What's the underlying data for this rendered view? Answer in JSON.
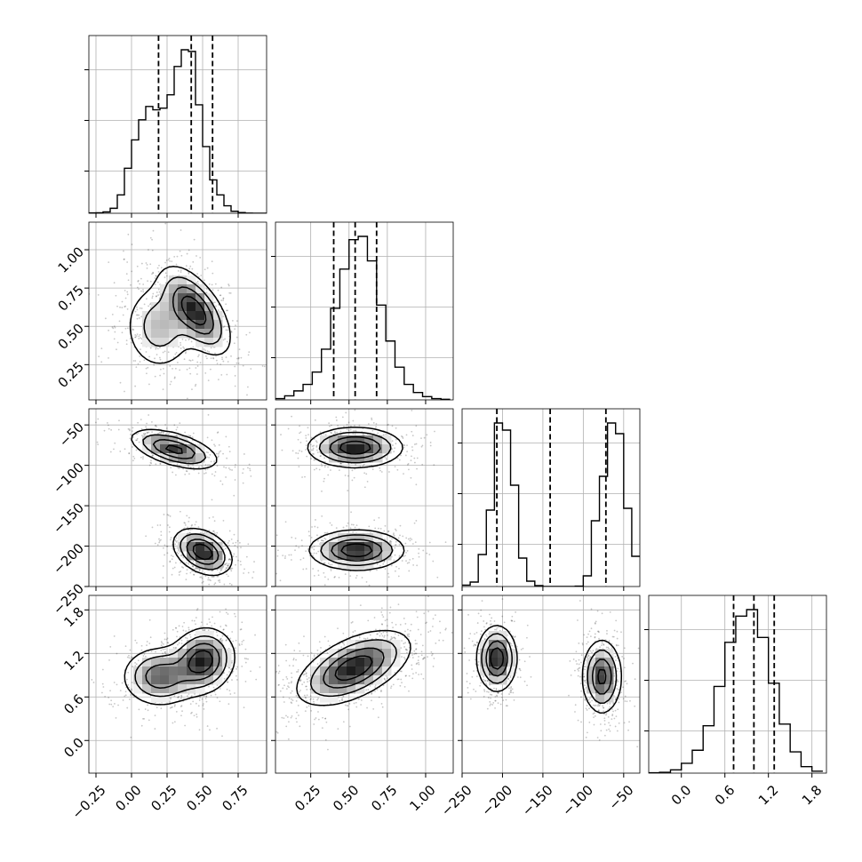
{
  "chart_data": {
    "type": "corner",
    "n_params": 4,
    "grid": true,
    "ranges": [
      [
        -0.3,
        0.95
      ],
      [
        0.02,
        1.18
      ],
      [
        -250,
        -30
      ],
      [
        -0.45,
        2.0
      ]
    ],
    "ticks": [
      [
        -0.25,
        0.0,
        0.25,
        0.5,
        0.75
      ],
      [
        0.25,
        0.5,
        0.75,
        1.0
      ],
      [
        -250,
        -200,
        -150,
        -100,
        -50
      ],
      [
        0.0,
        0.6,
        1.2,
        1.8
      ]
    ],
    "tick_labels": [
      [
        "−0.25",
        "0.00",
        "0.25",
        "0.50",
        "0.75"
      ],
      [
        "0.25",
        "0.50",
        "0.75",
        "1.00"
      ],
      [
        "−250",
        "−200",
        "−150",
        "−100",
        "−50"
      ],
      [
        "0.0",
        "0.6",
        "1.2",
        "1.8"
      ]
    ],
    "histograms": [
      {
        "bins": [
          -0.3,
          -0.25,
          -0.2,
          -0.15,
          -0.1,
          -0.05,
          0.0,
          0.05,
          0.1,
          0.15,
          0.2,
          0.25,
          0.3,
          0.35,
          0.4,
          0.45,
          0.5,
          0.55,
          0.6,
          0.65,
          0.7,
          0.75,
          0.8,
          0.85,
          0.9,
          0.95
        ],
        "counts": [
          2,
          3,
          8,
          30,
          110,
          270,
          440,
          560,
          640,
          620,
          630,
          710,
          880,
          980,
          970,
          650,
          400,
          200,
          110,
          45,
          12,
          4,
          1,
          0,
          0
        ],
        "quantiles": [
          0.19,
          0.42,
          0.57
        ]
      },
      {
        "bins": [
          0.02,
          0.08,
          0.14,
          0.2,
          0.26,
          0.32,
          0.38,
          0.44,
          0.5,
          0.56,
          0.62,
          0.68,
          0.74,
          0.8,
          0.86,
          0.92,
          0.98,
          1.04,
          1.1,
          1.16
        ],
        "counts": [
          8,
          25,
          55,
          95,
          170,
          310,
          560,
          800,
          980,
          1000,
          850,
          580,
          360,
          200,
          95,
          45,
          20,
          8,
          4
        ],
        "quantiles": [
          0.4,
          0.54,
          0.68
        ]
      },
      {
        "bins": [
          -250,
          -240,
          -230,
          -220,
          -210,
          -200,
          -190,
          -180,
          -170,
          -160,
          -150,
          -140,
          -130,
          -120,
          -110,
          -100,
          -90,
          -80,
          -70,
          -60,
          -50,
          -40,
          -30
        ],
        "counts": [
          8,
          25,
          180,
          430,
          920,
          880,
          570,
          160,
          30,
          5,
          0,
          0,
          0,
          0,
          2,
          60,
          370,
          620,
          920,
          860,
          440,
          170
        ],
        "quantiles": [
          -207,
          -141,
          -72
        ]
      },
      {
        "bins": [
          -0.45,
          -0.3,
          -0.15,
          0.0,
          0.15,
          0.3,
          0.45,
          0.6,
          0.75,
          0.9,
          1.05,
          1.2,
          1.35,
          1.5,
          1.65,
          1.8,
          1.95
        ],
        "counts": [
          2,
          5,
          20,
          60,
          140,
          290,
          530,
          800,
          960,
          1000,
          830,
          550,
          300,
          130,
          40,
          12
        ],
        "quantiles": [
          0.72,
          1.0,
          1.28
        ]
      }
    ],
    "pairs": [
      {
        "row": 1,
        "col": 0,
        "modes": [
          {
            "mx": 0.45,
            "my": 0.6,
            "sx": 0.12,
            "sy": 0.14,
            "rho": -0.6,
            "w": 0.6
          },
          {
            "mx": 0.2,
            "my": 0.5,
            "sx": 0.13,
            "sy": 0.15,
            "rho": 0.0,
            "w": 0.4
          }
        ]
      },
      {
        "row": 2,
        "col": 0,
        "modes": [
          {
            "mx": 0.3,
            "my": -80,
            "sx": 0.15,
            "sy": 12,
            "rho": -0.55,
            "w": 0.5
          },
          {
            "mx": 0.5,
            "my": -207,
            "sx": 0.1,
            "sy": 14,
            "rho": -0.35,
            "w": 0.5
          }
        ]
      },
      {
        "row": 2,
        "col": 1,
        "modes": [
          {
            "mx": 0.54,
            "my": -78,
            "sx": 0.15,
            "sy": 12,
            "rho": 0.0,
            "w": 0.5
          },
          {
            "mx": 0.55,
            "my": -205,
            "sx": 0.15,
            "sy": 12,
            "rho": 0.0,
            "w": 0.5
          }
        ]
      },
      {
        "row": 3,
        "col": 0,
        "modes": [
          {
            "mx": 0.5,
            "my": 1.1,
            "sx": 0.11,
            "sy": 0.22,
            "rho": 0.1,
            "w": 0.55
          },
          {
            "mx": 0.2,
            "my": 0.88,
            "sx": 0.13,
            "sy": 0.2,
            "rho": 0.0,
            "w": 0.45
          }
        ]
      },
      {
        "row": 3,
        "col": 1,
        "modes": [
          {
            "mx": 0.53,
            "my": 1.0,
            "sx": 0.18,
            "sy": 0.25,
            "rho": 0.55,
            "w": 1.0
          }
        ]
      },
      {
        "row": 3,
        "col": 2,
        "modes": [
          {
            "mx": -207,
            "my": 1.13,
            "sx": 12,
            "sy": 0.22,
            "rho": 0.0,
            "w": 0.5
          },
          {
            "mx": -77,
            "my": 0.88,
            "sx": 12,
            "sy": 0.25,
            "rho": 0.0,
            "w": 0.5
          }
        ]
      }
    ]
  }
}
